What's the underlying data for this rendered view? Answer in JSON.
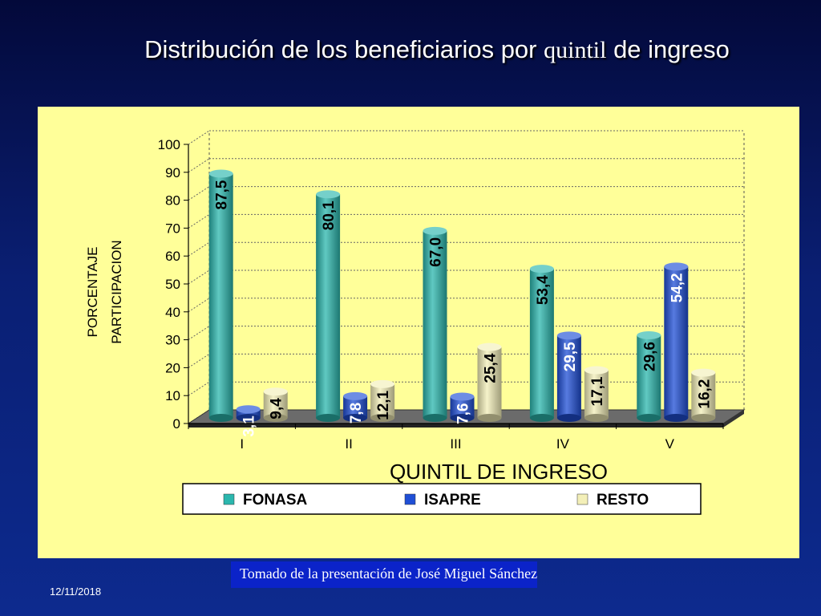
{
  "slide": {
    "title_part1": "Distribución de los beneficiarios por ",
    "title_part2": "quintil",
    "title_part3": " de ingreso",
    "credit": "Tomado de la presentación de José Miguel Sánchez",
    "date": "12/11/2018"
  },
  "chart_data": {
    "type": "bar",
    "title": "",
    "xlabel": "QUINTIL DE INGRESO",
    "ylabel_line1": "PORCENTAJE",
    "ylabel_line2": "PARTICIPACION",
    "categories": [
      "I",
      "II",
      "III",
      "IV",
      "V"
    ],
    "ylim": [
      0,
      100
    ],
    "yticks": [
      0,
      10,
      20,
      30,
      40,
      50,
      60,
      70,
      80,
      90,
      100
    ],
    "grid": true,
    "legend_position": "bottom",
    "series": [
      {
        "name": "FONASA",
        "color": "#2bb7ae",
        "values": [
          87.5,
          80.1,
          67.0,
          53.4,
          29.6
        ],
        "labels": [
          "87,5",
          "80,1",
          "67,0",
          "53,4",
          "29,6"
        ],
        "label_color": "#000000"
      },
      {
        "name": "ISAPRE",
        "color": "#1f4fd6",
        "values": [
          3.1,
          7.8,
          7.6,
          29.5,
          54.2
        ],
        "labels": [
          "3,1",
          "7,8",
          "7,6",
          "29,5",
          "54,2"
        ],
        "label_color": "#ffffff"
      },
      {
        "name": "RESTO",
        "color": "#f3efb8",
        "values": [
          9.4,
          12.1,
          25.4,
          17.1,
          16.2
        ],
        "labels": [
          "9,4",
          "12,1",
          "25,4",
          "17,1",
          "16,2"
        ],
        "label_color": "#000000"
      }
    ]
  }
}
